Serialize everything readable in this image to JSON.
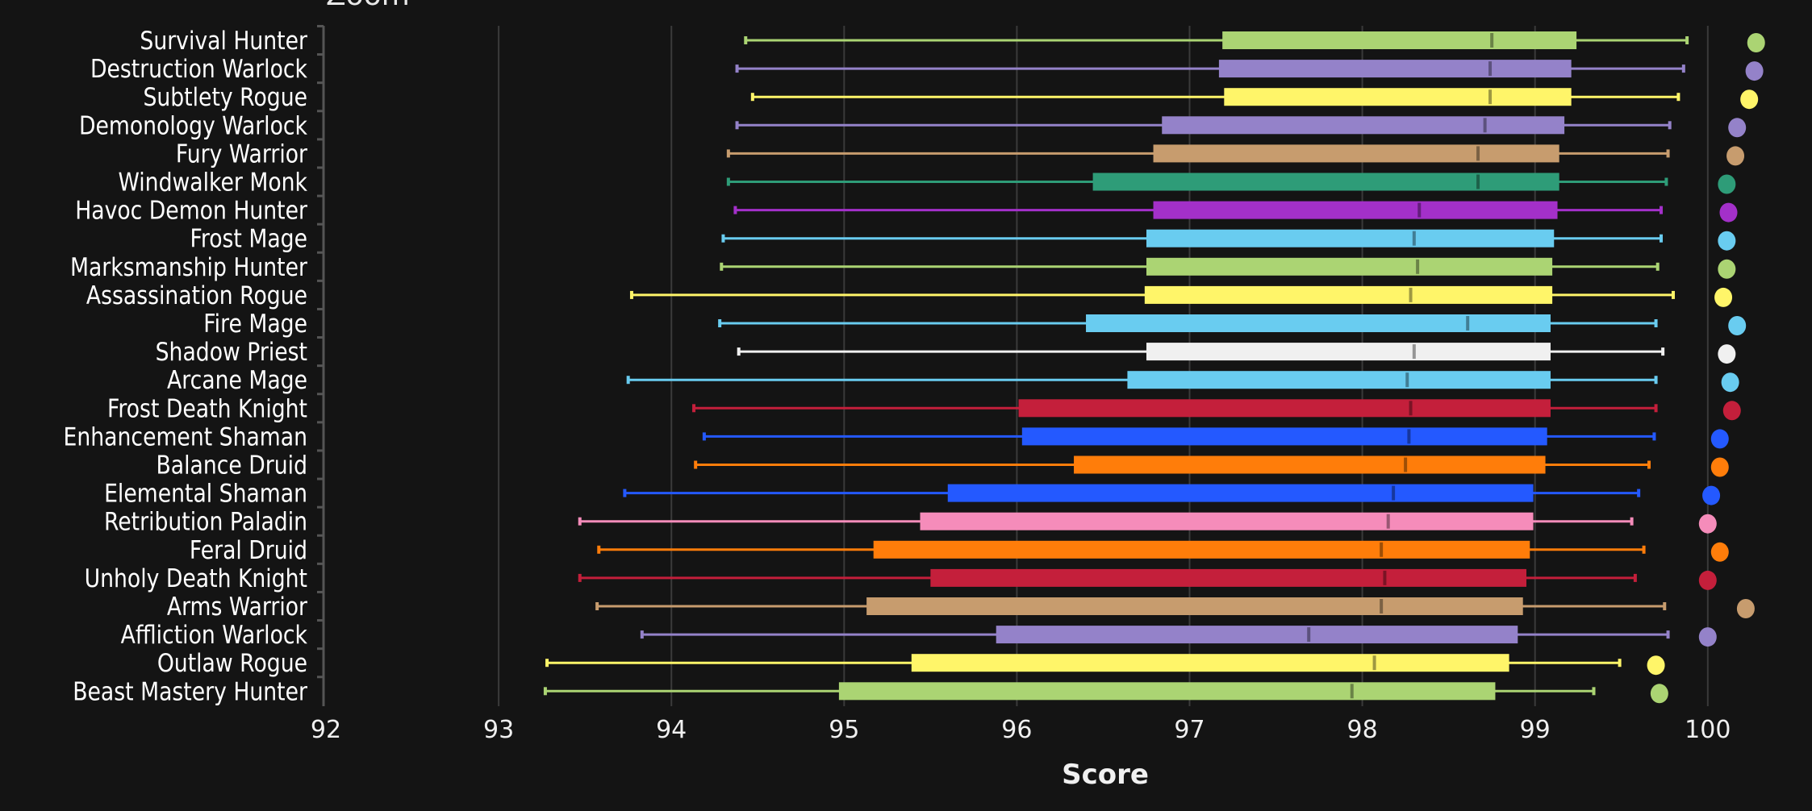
{
  "header": {
    "title_partial": "Zoom"
  },
  "chart_data": {
    "type": "boxplot",
    "orientation": "horizontal",
    "xlabel": "Score",
    "ylabel": "",
    "xlim": [
      92,
      100
    ],
    "xticks": [
      92,
      93,
      94,
      95,
      96,
      97,
      98,
      99,
      100
    ],
    "grid": true,
    "legend": "none",
    "background": "#141414",
    "series": [
      {
        "name": "Survival Hunter",
        "color": "#abd473",
        "min": 94.43,
        "q1": 97.19,
        "median": 98.75,
        "q3": 99.24,
        "max": 99.88,
        "point": 100.28
      },
      {
        "name": "Destruction Warlock",
        "color": "#9482c9",
        "min": 94.38,
        "q1": 97.17,
        "median": 98.74,
        "q3": 99.21,
        "max": 99.86,
        "point": 100.27
      },
      {
        "name": "Subtlety Rogue",
        "color": "#fff569",
        "min": 94.47,
        "q1": 97.2,
        "median": 98.74,
        "q3": 99.21,
        "max": 99.83,
        "point": 100.24
      },
      {
        "name": "Demonology Warlock",
        "color": "#9482c9",
        "min": 94.38,
        "q1": 96.84,
        "median": 98.71,
        "q3": 99.17,
        "max": 99.78,
        "point": 100.17
      },
      {
        "name": "Fury Warrior",
        "color": "#c79c6e",
        "min": 94.33,
        "q1": 96.79,
        "median": 98.67,
        "q3": 99.14,
        "max": 99.77,
        "point": 100.16
      },
      {
        "name": "Windwalker Monk",
        "color": "#2e9c78",
        "min": 94.33,
        "q1": 96.44,
        "median": 98.67,
        "q3": 99.14,
        "max": 99.76,
        "point": 100.11
      },
      {
        "name": "Havoc Demon Hunter",
        "color": "#a330c9",
        "min": 94.37,
        "q1": 96.79,
        "median": 98.33,
        "q3": 99.13,
        "max": 99.73,
        "point": 100.12
      },
      {
        "name": "Frost Mage",
        "color": "#69ccf0",
        "min": 94.3,
        "q1": 96.75,
        "median": 98.3,
        "q3": 99.11,
        "max": 99.73,
        "point": 100.11
      },
      {
        "name": "Marksmanship Hunter",
        "color": "#abd473",
        "min": 94.29,
        "q1": 96.75,
        "median": 98.32,
        "q3": 99.1,
        "max": 99.71,
        "point": 100.11
      },
      {
        "name": "Assassination Rogue",
        "color": "#fff569",
        "min": 93.77,
        "q1": 96.74,
        "median": 98.28,
        "q3": 99.1,
        "max": 99.8,
        "point": 100.09
      },
      {
        "name": "Fire Mage",
        "color": "#69ccf0",
        "min": 94.28,
        "q1": 96.4,
        "median": 98.61,
        "q3": 99.09,
        "max": 99.7,
        "point": 100.17
      },
      {
        "name": "Shadow Priest",
        "color": "#f0f0f0",
        "min": 94.39,
        "q1": 96.75,
        "median": 98.3,
        "q3": 99.09,
        "max": 99.74,
        "point": 100.11
      },
      {
        "name": "Arcane Mage",
        "color": "#69ccf0",
        "min": 93.75,
        "q1": 96.64,
        "median": 98.26,
        "q3": 99.09,
        "max": 99.7,
        "point": 100.13
      },
      {
        "name": "Frost Death Knight",
        "color": "#c41f3b",
        "min": 94.13,
        "q1": 96.01,
        "median": 98.28,
        "q3": 99.09,
        "max": 99.7,
        "point": 100.14
      },
      {
        "name": "Enhancement Shaman",
        "color": "#2459ff",
        "min": 94.19,
        "q1": 96.03,
        "median": 98.27,
        "q3": 99.07,
        "max": 99.69,
        "point": 100.07
      },
      {
        "name": "Balance Druid",
        "color": "#ff7d0a",
        "min": 94.14,
        "q1": 96.33,
        "median": 98.25,
        "q3": 99.06,
        "max": 99.66,
        "point": 100.07
      },
      {
        "name": "Elemental Shaman",
        "color": "#2459ff",
        "min": 93.73,
        "q1": 95.6,
        "median": 98.18,
        "q3": 98.99,
        "max": 99.6,
        "point": 100.02
      },
      {
        "name": "Retribution Paladin",
        "color": "#f58cba",
        "min": 93.47,
        "q1": 95.44,
        "median": 98.15,
        "q3": 98.99,
        "max": 99.56,
        "point": 100.0
      },
      {
        "name": "Feral Druid",
        "color": "#ff7d0a",
        "min": 93.58,
        "q1": 95.17,
        "median": 98.11,
        "q3": 98.97,
        "max": 99.63,
        "point": 100.07
      },
      {
        "name": "Unholy Death Knight",
        "color": "#c41f3b",
        "min": 93.47,
        "q1": 95.5,
        "median": 98.13,
        "q3": 98.95,
        "max": 99.58,
        "point": 100.0
      },
      {
        "name": "Arms Warrior",
        "color": "#c79c6e",
        "min": 93.57,
        "q1": 95.13,
        "median": 98.11,
        "q3": 98.93,
        "max": 99.75,
        "point": 100.22
      },
      {
        "name": "Affliction Warlock",
        "color": "#9482c9",
        "min": 93.83,
        "q1": 95.88,
        "median": 97.69,
        "q3": 98.9,
        "max": 99.77,
        "point": 100.0
      },
      {
        "name": "Outlaw Rogue",
        "color": "#fff569",
        "min": 93.28,
        "q1": 95.39,
        "median": 98.07,
        "q3": 98.85,
        "max": 99.49,
        "point": 99.7
      },
      {
        "name": "Beast Mastery Hunter",
        "color": "#abd473",
        "min": 93.27,
        "q1": 94.97,
        "median": 97.94,
        "q3": 98.77,
        "max": 99.34,
        "point": 99.72
      }
    ]
  }
}
